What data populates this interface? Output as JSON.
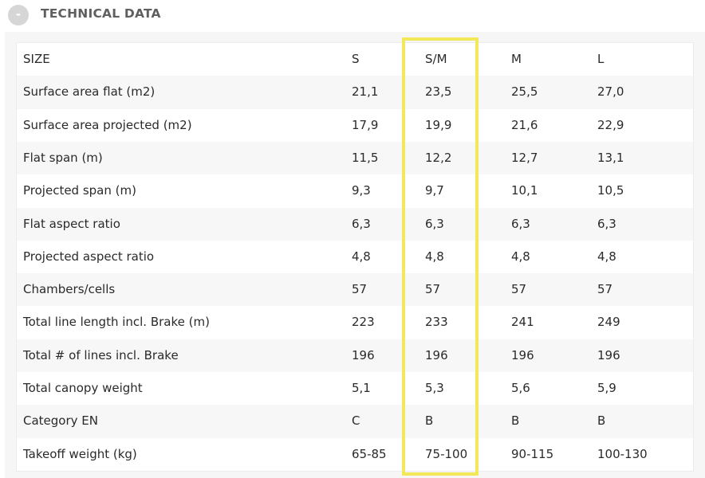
{
  "section": {
    "title": "TECHNICAL DATA",
    "toggle_symbol": "-"
  },
  "table": {
    "rows": [
      {
        "label": "SIZE",
        "values": [
          "S",
          "S/M",
          "M",
          "L"
        ]
      },
      {
        "label": "Surface area flat (m2)",
        "values": [
          "21,1",
          "23,5",
          "25,5",
          "27,0"
        ]
      },
      {
        "label": "Surface area projected (m2)",
        "values": [
          "17,9",
          "19,9",
          "21,6",
          "22,9"
        ]
      },
      {
        "label": "Flat span (m)",
        "values": [
          "11,5",
          "12,2",
          "12,7",
          "13,1"
        ]
      },
      {
        "label": "Projected span (m)",
        "values": [
          "9,3",
          "9,7",
          "10,1",
          "10,5"
        ]
      },
      {
        "label": "Flat aspect ratio",
        "values": [
          "6,3",
          "6,3",
          "6,3",
          "6,3"
        ]
      },
      {
        "label": "Projected aspect ratio",
        "values": [
          "4,8",
          "4,8",
          "4,8",
          "4,8"
        ]
      },
      {
        "label": "Chambers/cells",
        "values": [
          "57",
          "57",
          "57",
          "57"
        ]
      },
      {
        "label": "Total line length incl. Brake (m)",
        "values": [
          "223",
          "233",
          "241",
          "249"
        ]
      },
      {
        "label": "Total # of lines incl. Brake",
        "values": [
          "196",
          "196",
          "196",
          "196"
        ]
      },
      {
        "label": "Total canopy weight",
        "values": [
          "5,1",
          "5,3",
          "5,6",
          "5,9"
        ]
      },
      {
        "label": "Category EN",
        "values": [
          "C",
          "B",
          "B",
          "B"
        ]
      },
      {
        "label": "Takeoff weight (kg)",
        "values": [
          "65-85",
          "75-100",
          "90-115",
          "100-130"
        ]
      }
    ],
    "highlighted_column": "S/M",
    "highlight_color": "#f2e85a"
  }
}
